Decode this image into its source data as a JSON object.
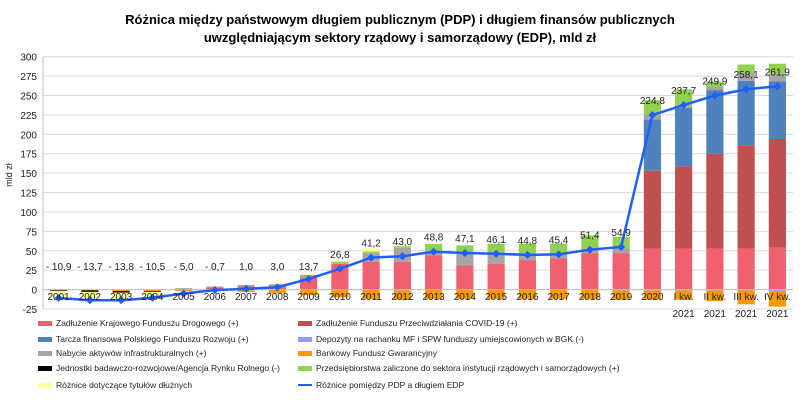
{
  "chart_data": {
    "type": "bar",
    "title_line1": "Różnica między państwowym długiem publicznym (PDP) i długiem finansów publicznych",
    "title_line2": "uwzględniającym sektory rządowy i samorządowy (EDP), mld zł",
    "ylabel": "mld zł",
    "xlabel": "",
    "ylim": [
      -25,
      300
    ],
    "yticks": [
      -25,
      0,
      25,
      50,
      75,
      100,
      125,
      150,
      175,
      200,
      225,
      250,
      275,
      300
    ],
    "grid": true,
    "legend_position": "bottom",
    "categories": [
      "2001",
      "2002",
      "2003",
      "2004",
      "2005",
      "2006",
      "2007",
      "2008",
      "2009",
      "2010",
      "2011",
      "2012",
      "2013",
      "2014",
      "2015",
      "2016",
      "2017",
      "2018",
      "2019",
      "2020",
      "I kw.\n2021",
      "II kw.\n2021",
      "III kw.\n2021",
      "IV kw.\n2021"
    ],
    "series": [
      {
        "name": "Zadłużenie Krajowego Funduszu Drogowego (+)",
        "color": "#f0606e",
        "values": [
          0,
          0,
          0,
          0,
          1,
          3,
          4,
          5,
          15,
          33,
          36,
          36,
          44,
          31,
          33,
          38,
          40,
          47,
          47,
          53,
          53,
          53,
          53,
          54
        ]
      },
      {
        "name": "Zadłużenie Funduszu Przeciwdziałania COVID-19 (+)",
        "color": "#c0504d",
        "values": [
          0,
          0,
          0,
          0,
          0,
          0,
          0,
          0,
          0,
          0,
          0,
          0,
          0,
          0,
          0,
          0,
          0,
          0,
          0,
          100,
          106,
          122,
          133,
          140
        ]
      },
      {
        "name": "Tarcza finansowa Polskiego Funduszu Rozwoju (+)",
        "color": "#4f81bd",
        "values": [
          0,
          0,
          0,
          0,
          0,
          0,
          0,
          0,
          0,
          0,
          0,
          0,
          0,
          0,
          0,
          0,
          0,
          0,
          0,
          66,
          75,
          82,
          83,
          74
        ]
      },
      {
        "name": "Depozyty na rachanku MF i SPW funduszy umiejscowionych w BGK (-)",
        "color": "#9999ff",
        "values": [
          0,
          0,
          0,
          0,
          0,
          0,
          0,
          0,
          0,
          0,
          0,
          -1,
          0,
          0,
          0,
          0,
          0,
          0,
          -1,
          -1,
          -1,
          -1,
          -1,
          -2
        ]
      },
      {
        "name": "Nabycie aktywów infrastrukturalnych (+)",
        "color": "#a5a5a5",
        "values": [
          0,
          0,
          0,
          0,
          1,
          1,
          2,
          2,
          4,
          1,
          11,
          18,
          6,
          17,
          13,
          6,
          6,
          6,
          6,
          6,
          3,
          4,
          10,
          10
        ]
      },
      {
        "name": "Bankowy Fundusz Gwarancyjny",
        "color": "#f79a00",
        "values": [
          -1,
          -1,
          -2,
          -2,
          -2,
          -2,
          -3,
          -5,
          -7,
          -10,
          -12,
          -12,
          -12,
          -12,
          -12,
          -12,
          -12,
          -12,
          -12,
          -12,
          -12,
          -14,
          -18,
          -20
        ]
      },
      {
        "name": "Jednostki badawczo-rozwojowe/Agencja Rynku Rolnego (-)",
        "color": "#000000",
        "values": [
          -1,
          -2,
          -2,
          -1,
          0,
          0,
          0,
          0,
          0,
          0,
          0,
          0,
          0,
          0,
          0,
          0,
          0,
          0,
          0,
          0,
          0,
          0,
          0,
          0
        ]
      },
      {
        "name": "Przedsiębiorstwa zaliczone do sektora instytucji rządowych i samorządowych (+)",
        "color": "#92d050",
        "values": [
          0,
          0,
          0,
          0,
          0,
          0,
          0,
          0,
          0,
          2,
          2,
          2,
          9,
          9,
          13,
          15,
          13,
          17,
          15,
          19,
          21,
          7,
          11,
          13
        ]
      },
      {
        "name": "Różnice dotyczące tytułów dłużnych",
        "color": "#ffff99",
        "values": [
          -7,
          -8,
          -8,
          -6,
          -2,
          -1,
          0,
          1,
          1,
          1,
          4,
          1,
          0,
          0,
          0,
          0,
          0,
          0,
          0,
          0,
          0,
          0,
          0,
          0
        ]
      }
    ],
    "line": {
      "name": "Różnice pomiędzy PDP a długiem EDP",
      "color": "#1f5fff",
      "values": [
        -10.9,
        -13.7,
        -13.8,
        -10.5,
        -5.0,
        -0.7,
        1.0,
        3.0,
        13.7,
        26.8,
        41.2,
        43.0,
        48.8,
        47.1,
        46.1,
        44.8,
        45.4,
        51.4,
        54.9,
        224.8,
        237.7,
        249.9,
        258.1,
        261.9
      ]
    },
    "data_labels": [
      "- 10,9",
      "- 13,7",
      "- 13,8",
      "- 10,5",
      "- 5,0",
      "- 0,7",
      "1,0",
      "3,0",
      "13,7",
      "26,8",
      "41,2",
      "43,0",
      "48,8",
      "47,1",
      "46,1",
      "44,8",
      "45,4",
      "51,4",
      "54,9",
      "224,8",
      "237,7",
      "249,9",
      "258,1",
      "261,9"
    ]
  }
}
